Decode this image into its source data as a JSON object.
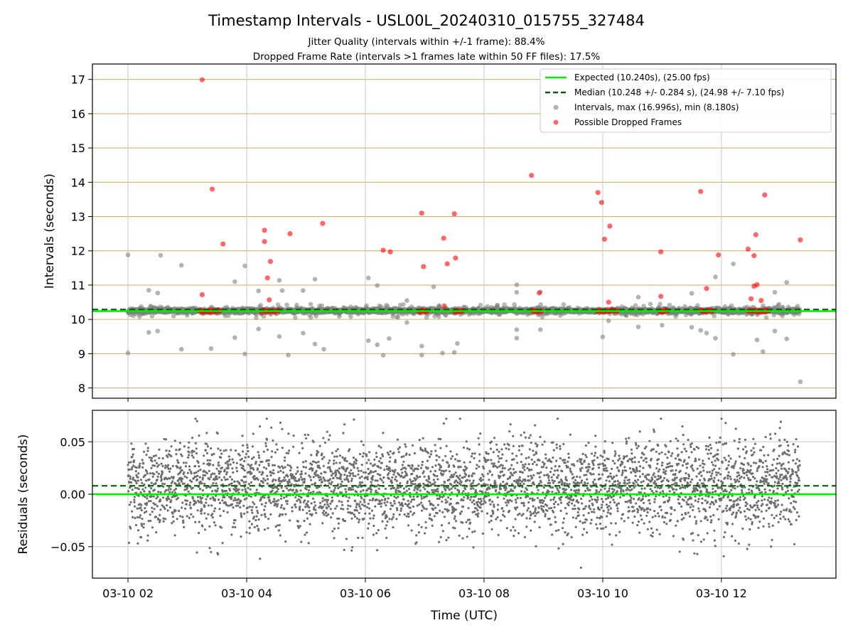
{
  "chart_data": [
    {
      "type": "scatter",
      "title": "Timestamp Intervals - USL00L_20240310_015755_327484",
      "subtitle_1": "Jitter Quality (intervals within +/-1 frame): 88.4%",
      "subtitle_2": "Dropped Frame Rate (intervals >1 frames late within 50 FF files): 17.5%",
      "ylabel": "Intervals (seconds)",
      "xlim_hours": [
        1.4,
        13.93
      ],
      "ylim": [
        7.7,
        17.45
      ],
      "yticks": [
        8,
        9,
        10,
        11,
        12,
        13,
        14,
        15,
        16,
        17
      ],
      "grid": true,
      "legend_position": "top-right",
      "legend": [
        {
          "label": "Expected (10.240s), (25.00 fps)",
          "kind": "solid-line",
          "color": "#00ee00"
        },
        {
          "label": "Median (10.248 +/- 0.284 s), (24.98 +/- 7.10 fps)",
          "kind": "dashed-line",
          "color": "#006400"
        },
        {
          "label": "Intervals, max (16.996s), min (8.180s)",
          "kind": "marker",
          "color": "#808080"
        },
        {
          "label": "Possible Dropped Frames",
          "kind": "marker",
          "color": "#ff0000"
        }
      ],
      "expected_line": 10.24,
      "median_line": 10.248,
      "x_start_hour": 2.0,
      "x_end_hour": 13.32,
      "interval_outliers": [
        {
          "x": 2.0,
          "y": 11.88
        },
        {
          "x": 2.0,
          "y": 9.02
        },
        {
          "x": 2.55,
          "y": 11.87
        },
        {
          "x": 2.9,
          "y": 11.58
        },
        {
          "x": 2.9,
          "y": 9.13
        },
        {
          "x": 3.4,
          "y": 9.15
        },
        {
          "x": 3.8,
          "y": 11.1
        },
        {
          "x": 3.8,
          "y": 9.47
        },
        {
          "x": 3.97,
          "y": 11.56
        },
        {
          "x": 3.97,
          "y": 8.99
        },
        {
          "x": 4.55,
          "y": 11.14
        },
        {
          "x": 4.55,
          "y": 9.5
        },
        {
          "x": 4.6,
          "y": 10.84
        },
        {
          "x": 4.7,
          "y": 8.96
        },
        {
          "x": 4.95,
          "y": 10.84
        },
        {
          "x": 4.95,
          "y": 9.6
        },
        {
          "x": 5.15,
          "y": 11.17
        },
        {
          "x": 5.15,
          "y": 9.28
        },
        {
          "x": 5.3,
          "y": 9.13
        },
        {
          "x": 6.05,
          "y": 11.21
        },
        {
          "x": 6.05,
          "y": 9.38
        },
        {
          "x": 6.2,
          "y": 10.99
        },
        {
          "x": 6.2,
          "y": 9.26
        },
        {
          "x": 6.3,
          "y": 8.95
        },
        {
          "x": 6.4,
          "y": 9.44
        },
        {
          "x": 6.7,
          "y": 10.55
        },
        {
          "x": 6.7,
          "y": 9.91
        },
        {
          "x": 6.95,
          "y": 9.22
        },
        {
          "x": 6.95,
          "y": 8.96
        },
        {
          "x": 7.15,
          "y": 10.95
        },
        {
          "x": 7.3,
          "y": 9.02
        },
        {
          "x": 7.5,
          "y": 9.04
        },
        {
          "x": 7.55,
          "y": 9.3
        },
        {
          "x": 8.55,
          "y": 11.01
        },
        {
          "x": 8.55,
          "y": 10.79
        },
        {
          "x": 8.55,
          "y": 9.7
        },
        {
          "x": 8.55,
          "y": 9.45
        },
        {
          "x": 8.95,
          "y": 10.8
        },
        {
          "x": 8.95,
          "y": 9.7
        },
        {
          "x": 10.0,
          "y": 9.49
        },
        {
          "x": 10.1,
          "y": 9.96
        },
        {
          "x": 11.0,
          "y": 9.83
        },
        {
          "x": 11.5,
          "y": 10.76
        },
        {
          "x": 11.5,
          "y": 9.77
        },
        {
          "x": 11.65,
          "y": 9.68
        },
        {
          "x": 11.75,
          "y": 9.6
        },
        {
          "x": 11.9,
          "y": 11.24
        },
        {
          "x": 11.9,
          "y": 9.45
        },
        {
          "x": 12.2,
          "y": 11.62
        },
        {
          "x": 12.2,
          "y": 8.98
        },
        {
          "x": 12.6,
          "y": 9.4
        },
        {
          "x": 12.7,
          "y": 9.06
        },
        {
          "x": 12.9,
          "y": 10.79
        },
        {
          "x": 12.9,
          "y": 9.66
        },
        {
          "x": 13.1,
          "y": 11.08
        },
        {
          "x": 13.1,
          "y": 9.43
        },
        {
          "x": 13.33,
          "y": 8.18
        },
        {
          "x": 2.35,
          "y": 10.85
        },
        {
          "x": 2.35,
          "y": 9.62
        },
        {
          "x": 2.5,
          "y": 10.77
        },
        {
          "x": 2.5,
          "y": 9.66
        },
        {
          "x": 4.2,
          "y": 10.83
        },
        {
          "x": 4.2,
          "y": 9.72
        },
        {
          "x": 10.6,
          "y": 10.65
        },
        {
          "x": 10.6,
          "y": 9.78
        }
      ],
      "dropped_frames": [
        {
          "x": 3.25,
          "y": 16.99
        },
        {
          "x": 3.42,
          "y": 13.8
        },
        {
          "x": 3.6,
          "y": 12.2
        },
        {
          "x": 3.25,
          "y": 10.72
        },
        {
          "x": 4.3,
          "y": 12.6
        },
        {
          "x": 4.3,
          "y": 12.27
        },
        {
          "x": 4.35,
          "y": 11.21
        },
        {
          "x": 4.4,
          "y": 11.69
        },
        {
          "x": 4.38,
          "y": 10.57
        },
        {
          "x": 4.73,
          "y": 12.5
        },
        {
          "x": 5.28,
          "y": 12.8
        },
        {
          "x": 6.3,
          "y": 12.02
        },
        {
          "x": 6.42,
          "y": 11.97
        },
        {
          "x": 6.95,
          "y": 13.1
        },
        {
          "x": 6.98,
          "y": 11.54
        },
        {
          "x": 7.32,
          "y": 12.37
        },
        {
          "x": 7.38,
          "y": 11.62
        },
        {
          "x": 7.5,
          "y": 13.08
        },
        {
          "x": 7.52,
          "y": 11.79
        },
        {
          "x": 8.8,
          "y": 14.2
        },
        {
          "x": 8.93,
          "y": 10.77
        },
        {
          "x": 9.92,
          "y": 13.7
        },
        {
          "x": 9.98,
          "y": 13.41
        },
        {
          "x": 10.03,
          "y": 12.34
        },
        {
          "x": 10.12,
          "y": 12.72
        },
        {
          "x": 10.1,
          "y": 10.5
        },
        {
          "x": 10.98,
          "y": 11.97
        },
        {
          "x": 10.98,
          "y": 10.67
        },
        {
          "x": 11.65,
          "y": 13.73
        },
        {
          "x": 11.75,
          "y": 10.9
        },
        {
          "x": 11.95,
          "y": 11.88
        },
        {
          "x": 12.45,
          "y": 12.05
        },
        {
          "x": 12.55,
          "y": 11.86
        },
        {
          "x": 12.58,
          "y": 12.47
        },
        {
          "x": 12.55,
          "y": 10.97
        },
        {
          "x": 12.6,
          "y": 11.01
        },
        {
          "x": 12.5,
          "y": 10.6
        },
        {
          "x": 12.67,
          "y": 10.55
        },
        {
          "x": 12.73,
          "y": 13.63
        },
        {
          "x": 13.33,
          "y": 12.32
        },
        {
          "x": 7.33,
          "y": 10.39
        }
      ],
      "dropped_frame_clusters": [
        {
          "start": 3.2,
          "end": 3.55,
          "y": 10.245
        },
        {
          "start": 4.25,
          "end": 4.55,
          "y": 10.245
        },
        {
          "start": 6.9,
          "end": 7.05,
          "y": 10.245
        },
        {
          "start": 7.5,
          "end": 7.65,
          "y": 10.245
        },
        {
          "start": 8.8,
          "end": 8.97,
          "y": 10.245
        },
        {
          "start": 9.9,
          "end": 10.25,
          "y": 10.245
        },
        {
          "start": 10.95,
          "end": 11.1,
          "y": 10.245
        },
        {
          "start": 11.65,
          "end": 11.85,
          "y": 10.245
        },
        {
          "start": 12.45,
          "end": 12.8,
          "y": 10.245
        }
      ]
    },
    {
      "type": "scatter",
      "xlabel": "Time (UTC)",
      "ylabel": "Residuals (seconds)",
      "xlim_hours": [
        1.4,
        13.93
      ],
      "ylim": [
        -0.08,
        0.08
      ],
      "yticks": [
        -0.05,
        0.0,
        0.05
      ],
      "ytick_labels": [
        "−0.05",
        "0.00",
        "0.05"
      ],
      "xticks_hours": [
        2,
        4,
        6,
        8,
        10,
        12
      ],
      "xtick_labels": [
        "03-10 02",
        "03-10 04",
        "03-10 06",
        "03-10 08",
        "03-10 10",
        "03-10 12"
      ],
      "grid": true,
      "expected_line": 0.0,
      "median_line": 0.008,
      "residual_points": 3980,
      "residual_std": 0.022,
      "residual_mean": 0.008,
      "x_start_hour": 2.0,
      "x_end_hour": 13.32
    }
  ],
  "colors": {
    "expected": "#00ee00",
    "median": "#006400",
    "interval": "#808080",
    "dropped": "#ff0000",
    "hgrid_top": "#d4b06a",
    "grid": "#c8c8c8",
    "residual": "#6e6e6e"
  }
}
